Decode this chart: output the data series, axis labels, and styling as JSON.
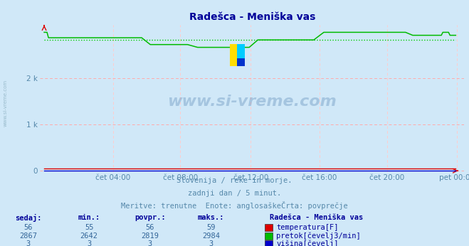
{
  "title": "Radešca - Meniška vas",
  "bg_color": "#d0e8f8",
  "plot_bg_color": "#d0e8f8",
  "grid_color_h": "#ffaaaa",
  "grid_color_v": "#ffcccc",
  "x_labels": [
    "čet 04:00",
    "čet 08:00",
    "čet 12:00",
    "čet 16:00",
    "čet 20:00",
    "pet 00:00"
  ],
  "x_ticks_norm": [
    0.1667,
    0.3333,
    0.5,
    0.6667,
    0.8333,
    1.0
  ],
  "total_points": 288,
  "y_min": 0,
  "y_max": 3100,
  "y_ticks": [
    0,
    1000,
    2000
  ],
  "y_tick_labels": [
    "0",
    "1 k",
    "2 k"
  ],
  "subtitle1": "Slovenija / reke in morje.",
  "subtitle2": "zadnji dan / 5 minut.",
  "subtitle3": "Meritve: trenutne  Enote: anglosaškeČrta: povprečje",
  "subtitle3_parts": [
    "Meritve: trenutne  Enote: anglosaškeČrta: povprečje"
  ],
  "watermark": "www.si-vreme.com",
  "table_headers": [
    "sedaj:",
    "min.:",
    "povpr.:",
    "maks.:"
  ],
  "table_row1": [
    "56",
    "55",
    "56",
    "59"
  ],
  "table_row2": [
    "2867",
    "2642",
    "2819",
    "2984"
  ],
  "table_row3": [
    "3",
    "3",
    "3",
    "3"
  ],
  "legend_title": "Radešca - Meniška vas",
  "legend_items": [
    "temperatura[F]",
    "pretok[čevelj3/min]",
    "višina[čevelj]"
  ],
  "legend_colors": [
    "#dd0000",
    "#00bb00",
    "#0000cc"
  ],
  "temp_color": "#dd0000",
  "flow_color": "#00bb00",
  "height_color": "#0000cc",
  "avg_dotted_color": "#00cc00",
  "flow_avg": 2819,
  "title_color": "#000099",
  "axis_color": "#5588aa",
  "text_color": "#5588aa",
  "table_num_color": "#336699",
  "table_hdr_color": "#000099",
  "arrow_color": "#dd0000"
}
